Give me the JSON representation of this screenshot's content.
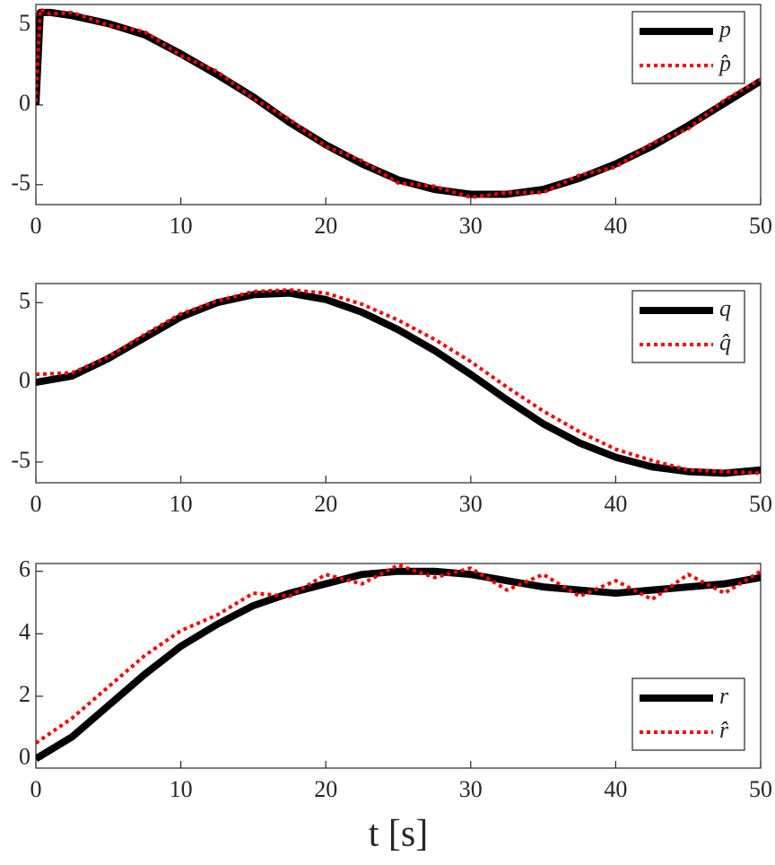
{
  "chart_data": [
    {
      "type": "line",
      "legend": "upper right",
      "x": [
        0,
        0.3,
        1,
        2.5,
        5,
        7.5,
        10,
        12.5,
        15,
        17.5,
        20,
        22.5,
        25,
        27.5,
        30,
        32.5,
        35,
        37.5,
        40,
        42.5,
        45,
        47.5,
        50
      ],
      "series": [
        {
          "name": "p",
          "color": "#000000",
          "linestyle": "solid",
          "values": [
            0,
            5.8,
            5.8,
            5.6,
            5.1,
            4.4,
            3.2,
            1.9,
            0.5,
            -1.1,
            -2.5,
            -3.7,
            -4.7,
            -5.3,
            -5.6,
            -5.6,
            -5.3,
            -4.6,
            -3.7,
            -2.6,
            -1.3,
            0.1,
            1.5
          ]
        },
        {
          "name": "p̂",
          "color": "#ff0000",
          "linestyle": "dotted",
          "values": [
            0.2,
            6.0,
            5.7,
            5.8,
            5.0,
            4.6,
            3.1,
            2.1,
            0.4,
            -0.9,
            -2.6,
            -3.5,
            -4.9,
            -5.1,
            -5.8,
            -5.5,
            -5.5,
            -4.4,
            -3.9,
            -2.4,
            -1.5,
            0.3,
            1.6
          ]
        }
      ],
      "xlim": [
        0,
        50
      ],
      "xticks": [
        0,
        10,
        20,
        30,
        40,
        50
      ],
      "ylim": [
        -6.25,
        6.3
      ],
      "yticks": [
        -5,
        0,
        5
      ]
    },
    {
      "type": "line",
      "legend": "upper right",
      "x": [
        0,
        2.5,
        5,
        7.5,
        10,
        12.5,
        15,
        17.5,
        20,
        22.5,
        25,
        27.5,
        30,
        32.5,
        35,
        37.5,
        40,
        42.5,
        45,
        47.5,
        50
      ],
      "series": [
        {
          "name": "q",
          "color": "#000000",
          "linestyle": "solid",
          "values": [
            0,
            0.4,
            1.5,
            2.8,
            4.1,
            5.0,
            5.5,
            5.6,
            5.2,
            4.4,
            3.3,
            2.0,
            0.5,
            -1.1,
            -2.6,
            -3.8,
            -4.7,
            -5.3,
            -5.6,
            -5.7,
            -5.5
          ]
        },
        {
          "name": "q̂",
          "color": "#ff0000",
          "linestyle": "dotted",
          "values": [
            0.5,
            0.6,
            1.6,
            3.0,
            4.3,
            5.1,
            5.7,
            5.8,
            5.6,
            4.9,
            3.9,
            2.7,
            1.3,
            -0.3,
            -1.8,
            -3.1,
            -4.2,
            -4.9,
            -5.5,
            -5.6,
            -5.7
          ]
        }
      ],
      "xlim": [
        0,
        50
      ],
      "xticks": [
        0,
        10,
        20,
        30,
        40,
        50
      ],
      "ylim": [
        -6.3,
        6.2
      ],
      "yticks": [
        -5,
        0,
        5
      ]
    },
    {
      "type": "line",
      "legend": "lower right",
      "xlabel": "t [s]",
      "x": [
        0,
        2.5,
        5,
        7.5,
        10,
        12.5,
        15,
        17.5,
        20,
        22.5,
        25,
        27.5,
        30,
        32.5,
        35,
        37.5,
        40,
        42.5,
        45,
        47.5,
        50
      ],
      "series": [
        {
          "name": "r",
          "color": "#000000",
          "linestyle": "solid",
          "values": [
            0,
            0.7,
            1.7,
            2.7,
            3.6,
            4.3,
            4.9,
            5.3,
            5.6,
            5.9,
            6.0,
            6.0,
            5.9,
            5.7,
            5.5,
            5.4,
            5.3,
            5.4,
            5.5,
            5.6,
            5.8
          ]
        },
        {
          "name": "r̂",
          "color": "#ff0000",
          "linestyle": "dotted",
          "values": [
            0.5,
            1.3,
            2.3,
            3.3,
            4.1,
            4.6,
            5.3,
            5.2,
            5.9,
            5.6,
            6.2,
            5.8,
            6.1,
            5.4,
            5.9,
            5.2,
            5.7,
            5.1,
            5.9,
            5.3,
            6.0
          ]
        }
      ],
      "xlim": [
        0,
        50
      ],
      "xticks": [
        0,
        10,
        20,
        30,
        40,
        50
      ],
      "ylim": [
        -0.3,
        6.25
      ],
      "yticks": [
        0,
        2,
        4,
        6
      ]
    }
  ]
}
